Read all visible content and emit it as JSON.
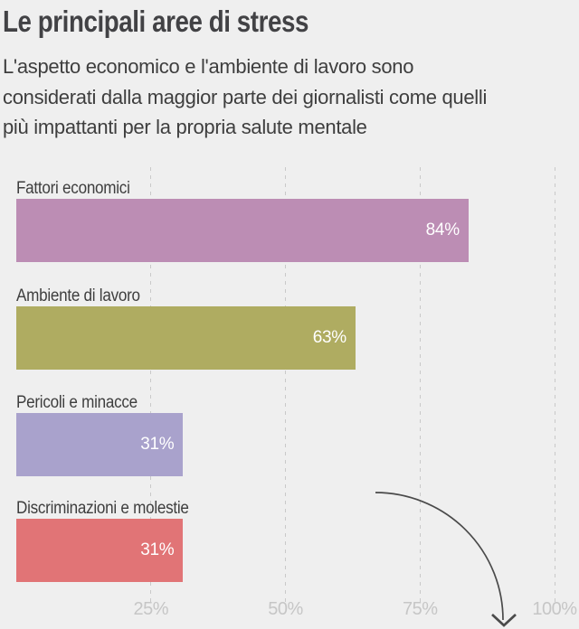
{
  "title": "Le principali aree di stress",
  "subtitle": "L'aspetto economico e l'ambiente di lavoro sono considerati dalla maggior parte dei giornalisti come quelli più impattanti per la propria salute mentale",
  "subtitle_lines": [
    "L'aspetto economico e l'ambiente di lavoro sono",
    "considerati dalla maggior parte dei giornalisti come quelli",
    "più impattanti per la propria salute mentale"
  ],
  "chart_data": {
    "type": "bar",
    "orientation": "horizontal",
    "title": "Le principali aree di stress",
    "categories": [
      "Fattori economici",
      "Ambiente di lavoro",
      "Pericoli e minacce",
      "Discriminazioni e molestie"
    ],
    "values": [
      84,
      63,
      31,
      31
    ],
    "value_labels": [
      "84%",
      "63%",
      "31%",
      "31%"
    ],
    "bar_colors": [
      "#bc8db4",
      "#afac61",
      "#a9a2cc",
      "#e17476"
    ],
    "xlim": [
      0,
      100
    ],
    "x_ticks": [
      {
        "label": "25%",
        "value": 25
      },
      {
        "label": "50%",
        "value": 50
      },
      {
        "label": "75%",
        "value": 75
      },
      {
        "label": "100%",
        "value": 100
      }
    ],
    "ylabel": "",
    "xlabel": "",
    "grid": "vertical-dashed",
    "legend": "none",
    "value_labels_position": "inside-end",
    "annotations": [
      {
        "type": "arrow",
        "shape": "curved-quarter-arc",
        "direction": "down",
        "color": "#4a4a4a"
      }
    ]
  },
  "colors": {
    "background": "#efefef",
    "title_text": "#424245",
    "body_text": "#3e3e3e",
    "gridline": "#c9c9c9",
    "tick_text": "#c6c6c6",
    "value_text": "#ffffff",
    "arrow": "#4a4a4a"
  }
}
